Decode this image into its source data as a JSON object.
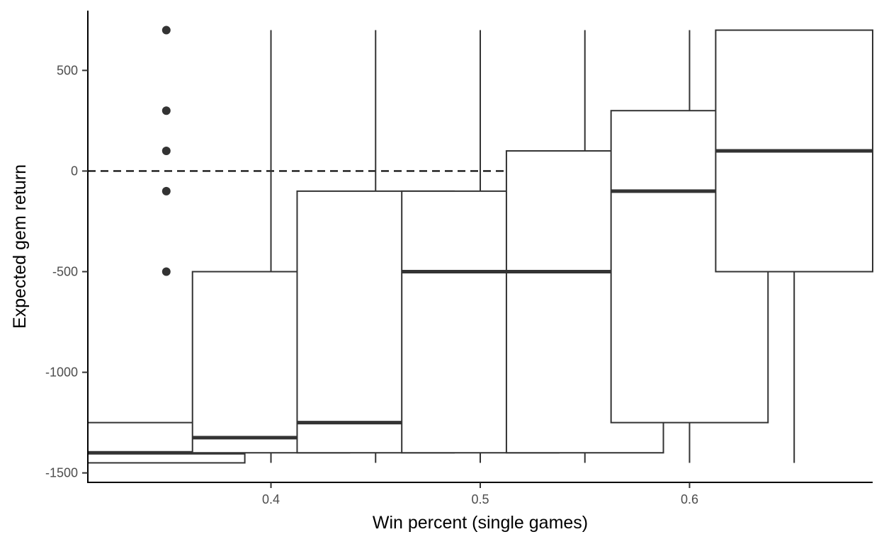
{
  "chart_data": {
    "type": "box",
    "title": "",
    "xlabel": "Win percent (single games)",
    "ylabel": "Expected gem return",
    "xlim": [
      0.3125,
      0.6875
    ],
    "ylim": [
      -1547,
      797
    ],
    "x_ticks": [
      {
        "value": 0.4,
        "label": "0.4"
      },
      {
        "value": 0.5,
        "label": "0.5"
      },
      {
        "value": 0.6,
        "label": "0.6"
      }
    ],
    "y_ticks": [
      {
        "value": -1500,
        "label": "-1500"
      },
      {
        "value": -1000,
        "label": "-1000"
      },
      {
        "value": -500,
        "label": "-500"
      },
      {
        "value": 0,
        "label": "0"
      },
      {
        "value": 500,
        "label": "500"
      }
    ],
    "reference_line": {
      "y": 0,
      "style": "dashed"
    },
    "box_width": 0.075,
    "boxes": [
      {
        "x": 0.35,
        "lower_whisker": -1450,
        "q1": -1450,
        "median": -1400,
        "q3": -1250,
        "upper_whisker": -1250,
        "outliers": [
          -500,
          -100,
          100,
          300,
          700
        ]
      },
      {
        "x": 0.4,
        "lower_whisker": -1450,
        "q1": -1400,
        "median": -1325,
        "q3": -500,
        "upper_whisker": 700,
        "outliers": []
      },
      {
        "x": 0.45,
        "lower_whisker": -1450,
        "q1": -1400,
        "median": -1250,
        "q3": -100,
        "upper_whisker": 700,
        "outliers": []
      },
      {
        "x": 0.5,
        "lower_whisker": -1450,
        "q1": -1400,
        "median": -500,
        "q3": -100,
        "upper_whisker": 700,
        "outliers": []
      },
      {
        "x": 0.55,
        "lower_whisker": -1450,
        "q1": -1400,
        "median": -500,
        "q3": 100,
        "upper_whisker": 700,
        "outliers": []
      },
      {
        "x": 0.6,
        "lower_whisker": -1450,
        "q1": -1250,
        "median": -100,
        "q3": 300,
        "upper_whisker": 700,
        "outliers": []
      },
      {
        "x": 0.65,
        "lower_whisker": -1450,
        "q1": -500,
        "median": 100,
        "q3": 700,
        "upper_whisker": 700,
        "outliers": []
      }
    ],
    "colors": {
      "box_line": "#333333",
      "box_fill": "#ffffff",
      "outlier": "#333333",
      "axis": "#000000",
      "tick_text": "#4d4d4d"
    },
    "grid": false,
    "legend": "none"
  }
}
